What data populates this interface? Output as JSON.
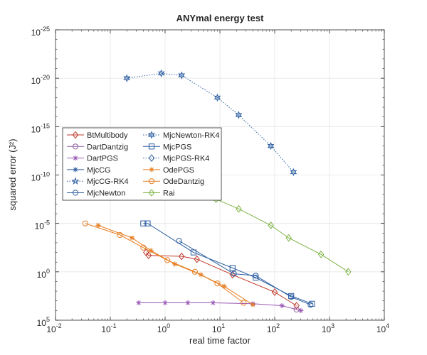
{
  "chart_data": {
    "type": "line",
    "title": "ANYmal energy test",
    "xlabel": "real time factor",
    "ylabel": "squared error (J²)",
    "x_scale": "log",
    "y_scale": "log-reversed",
    "xlim": [
      0.01,
      10000
    ],
    "ylim_exponents": [
      -25,
      5
    ],
    "x_ticks": [
      {
        "base": "10",
        "exp": "-2"
      },
      {
        "base": "10",
        "exp": "-1"
      },
      {
        "base": "10",
        "exp": "0"
      },
      {
        "base": "10",
        "exp": "1"
      },
      {
        "base": "10",
        "exp": "2"
      },
      {
        "base": "10",
        "exp": "3"
      },
      {
        "base": "10",
        "exp": "4"
      }
    ],
    "y_ticks": [
      {
        "base": "10",
        "exp": "-25"
      },
      {
        "base": "10",
        "exp": "-20"
      },
      {
        "base": "10",
        "exp": "-15"
      },
      {
        "base": "10",
        "exp": "-10"
      },
      {
        "base": "10",
        "exp": "-5"
      },
      {
        "base": "10",
        "exp": "0"
      },
      {
        "base": "10",
        "exp": "5"
      }
    ],
    "grid": true,
    "legend_position": "middle-left",
    "series": [
      {
        "name": "BtMultibody",
        "color": "#c0392b",
        "marker": "diamond",
        "dash": "solid",
        "x": [
          0.45,
          0.5,
          2.0,
          3.8,
          17,
          100,
          250
        ],
        "y_exp": [
          -2.0,
          -1.7,
          -1.6,
          -1.3,
          0.3,
          2.1,
          3.5
        ]
      },
      {
        "name": "DartDantzig",
        "color": "#8e5ea2",
        "marker": "circle",
        "dash": "solid",
        "x": [
          250
        ],
        "y_exp": [
          3.9
        ]
      },
      {
        "name": "DartPGS",
        "color": "#9b59b6",
        "marker": "asterisk",
        "dash": "solid",
        "x": [
          0.33,
          1.0,
          2.6,
          7.5,
          40,
          135,
          300
        ],
        "y_exp": [
          3.2,
          3.2,
          3.2,
          3.2,
          3.3,
          3.5,
          4.0
        ]
      },
      {
        "name": "MjcCG",
        "color": "#2e5fa1",
        "marker": "asterisk",
        "dash": "solid",
        "x": [],
        "y_exp": []
      },
      {
        "name": "MjcCG-RK4",
        "color": "#2e5fa1",
        "marker": "star",
        "dash": "dotted",
        "x": [],
        "y_exp": []
      },
      {
        "name": "MjcNewton",
        "color": "#2e5fa1",
        "marker": "circle",
        "dash": "solid",
        "x": [
          1.8,
          18,
          45,
          200,
          450
        ],
        "y_exp": [
          -3.2,
          0.2,
          0.4,
          2.6,
          3.4
        ]
      },
      {
        "name": "MjcNewton-RK4",
        "color": "#2e5fa1",
        "marker": "hexagram",
        "dash": "dotted",
        "x": [
          0.2,
          0.85,
          2.0,
          9,
          22,
          85,
          220
        ],
        "y_exp": [
          -20.0,
          -20.5,
          -20.3,
          -18.0,
          -16.2,
          -13.0,
          -10.3
        ]
      },
      {
        "name": "MjcPGS",
        "color": "#2e5fa1",
        "marker": "square",
        "dash": "solid",
        "x": [
          0.4,
          0.48,
          3.3,
          17,
          45,
          200,
          480
        ],
        "y_exp": [
          -5.0,
          -5.0,
          -2.0,
          -0.4,
          0.6,
          2.5,
          3.3
        ]
      },
      {
        "name": "MjcPGS-RK4",
        "color": "#2e5fa1",
        "marker": "diamond",
        "dash": "dotted",
        "x": [],
        "y_exp": []
      },
      {
        "name": "OdePGS",
        "color": "#e67e22",
        "marker": "asterisk",
        "dash": "solid",
        "x": [
          0.06,
          0.25,
          0.55,
          1.5,
          4.5,
          12,
          40
        ],
        "y_exp": [
          -4.8,
          -3.5,
          -2.2,
          -0.8,
          0.3,
          1.5,
          3.4
        ]
      },
      {
        "name": "OdeDantzig",
        "color": "#e67e22",
        "marker": "circle",
        "dash": "solid",
        "x": [
          0.035,
          0.15,
          0.4,
          1.1,
          3.5,
          9,
          27
        ],
        "y_exp": [
          -5.0,
          -3.8,
          -2.5,
          -1.2,
          0.0,
          1.2,
          3.2
        ]
      },
      {
        "name": "Rai",
        "color": "#7cb342",
        "marker": "diamond",
        "dash": "solid",
        "x": [
          2.2,
          8.5,
          22,
          85,
          180,
          700,
          2200
        ],
        "y_exp": [
          -8.8,
          -7.5,
          -6.5,
          -4.8,
          -3.5,
          -1.8,
          0.0
        ]
      }
    ]
  }
}
